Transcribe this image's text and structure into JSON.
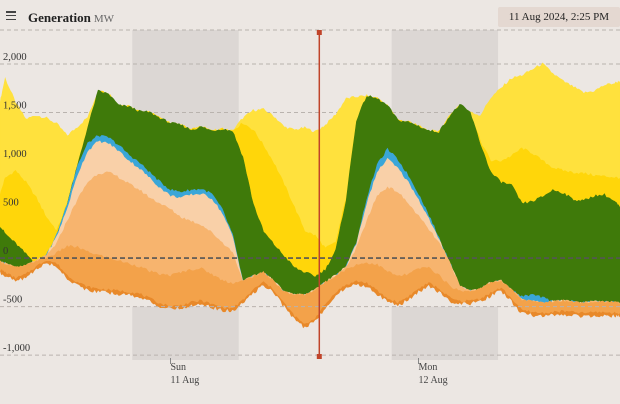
{
  "header": {
    "title": "Generation",
    "unit": "MW",
    "timestamp": "11 Aug 2024, 2:25 PM"
  },
  "chart_data": {
    "type": "area",
    "title": "Generation",
    "ylabel": "MW",
    "ylim": [
      -1050,
      2350
    ],
    "y_ticks": [
      {
        "value": 2000,
        "label": "2,000"
      },
      {
        "value": 1500,
        "label": "1,500"
      },
      {
        "value": 1000,
        "label": "1,000"
      },
      {
        "value": 500,
        "label": "500"
      },
      {
        "value": 0,
        "label": "0"
      },
      {
        "value": -500,
        "label": "-500"
      },
      {
        "value": -1000,
        "label": "-1,000"
      }
    ],
    "x_ticks": [
      {
        "hour": 24,
        "line1": "Sun",
        "line2": "11 Aug"
      },
      {
        "hour": 48,
        "line1": "Mon",
        "line2": "12 Aug"
      }
    ],
    "x_range_hours": [
      7.5,
      67.5
    ],
    "cursor_hour": 38.4,
    "night_bands": [
      [
        20.3,
        30.6
      ],
      [
        45.4,
        55.7
      ]
    ],
    "grid": true,
    "colors": {
      "negative_load": "#e8892a",
      "battery": "#f3a24a",
      "rooftop_solar": "#f7b46e",
      "utility_solar": "#f9d0a8",
      "hydro": "#3aa6d8",
      "wind": "#3f7a0a",
      "gas": "#ffd60a",
      "imports": "#ffe13d",
      "cursor": "#c0442a"
    },
    "x": [
      7.5,
      8,
      9,
      10,
      11,
      12,
      13,
      14,
      15,
      16,
      17,
      18,
      19,
      20,
      21,
      22,
      23,
      24,
      25,
      26,
      27,
      28,
      29,
      30,
      31,
      32,
      33,
      34,
      35,
      36,
      37,
      38,
      39,
      40,
      41,
      42,
      43,
      44,
      45,
      46,
      47,
      48,
      49,
      50,
      51,
      52,
      53,
      54,
      55,
      56,
      57,
      58,
      59,
      60,
      61,
      62,
      63,
      64,
      65,
      66,
      67,
      67.5
    ],
    "series": [
      {
        "key": "negative_load",
        "values": [
          -120,
          -150,
          -210,
          -170,
          -90,
          -20,
          -60,
          -180,
          -250,
          -300,
          -320,
          -330,
          -340,
          -350,
          -370,
          -420,
          -470,
          -500,
          -490,
          -460,
          -440,
          -480,
          -510,
          -520,
          -440,
          -330,
          -250,
          -330,
          -470,
          -600,
          -690,
          -620,
          -480,
          -350,
          -280,
          -240,
          -260,
          -340,
          -420,
          -460,
          -400,
          -320,
          -260,
          -320,
          -410,
          -450,
          -440,
          -420,
          -360,
          -310,
          -420,
          -540,
          -560,
          -570,
          -560,
          -550,
          -560,
          -570,
          -560,
          -560,
          -570,
          -570
        ]
      },
      {
        "key": "battery",
        "values": [
          -40,
          -60,
          -100,
          -80,
          -30,
          0,
          50,
          120,
          110,
          60,
          30,
          0,
          -30,
          -60,
          -90,
          -140,
          -170,
          -180,
          -150,
          -120,
          -110,
          -170,
          -230,
          -260,
          -240,
          -190,
          -150,
          -240,
          -350,
          -380,
          -380,
          -330,
          -250,
          -180,
          -120,
          -70,
          -50,
          -70,
          -140,
          -190,
          -170,
          -110,
          -100,
          -180,
          -290,
          -340,
          -340,
          -320,
          -250,
          -240,
          -330,
          -430,
          -450,
          -460,
          -450,
          -440,
          -450,
          -460,
          -450,
          -450,
          -460,
          -460
        ]
      },
      {
        "key": "rooftop_solar",
        "values": [
          -40,
          -60,
          -100,
          -80,
          -30,
          20,
          150,
          380,
          600,
          780,
          870,
          880,
          830,
          760,
          700,
          620,
          560,
          500,
          420,
          380,
          340,
          260,
          160,
          60,
          -240,
          -190,
          -150,
          -240,
          -350,
          -380,
          -380,
          -330,
          -250,
          -180,
          -100,
          100,
          380,
          640,
          730,
          680,
          560,
          430,
          290,
          150,
          -40,
          -290,
          -340,
          -320,
          -250,
          -240,
          -330,
          -430,
          -450,
          -460,
          -450,
          -440,
          -450,
          -460,
          -450,
          -450,
          -460,
          -460
        ]
      },
      {
        "key": "utility_solar",
        "values": [
          -40,
          -60,
          -100,
          -80,
          -30,
          30,
          220,
          500,
          850,
          1100,
          1200,
          1180,
          1100,
          1000,
          920,
          820,
          720,
          640,
          620,
          650,
          660,
          610,
          460,
          220,
          -240,
          -190,
          -150,
          -240,
          -350,
          -380,
          -380,
          -330,
          -250,
          -180,
          -90,
          150,
          560,
          880,
          1020,
          920,
          780,
          600,
          400,
          180,
          -40,
          -290,
          -340,
          -320,
          -250,
          -240,
          -330,
          -430,
          -450,
          -460,
          -450,
          -440,
          -450,
          -460,
          -450,
          -450,
          -460,
          -460
        ]
      },
      {
        "key": "hydro",
        "values": [
          -40,
          -60,
          -100,
          -80,
          -30,
          30,
          240,
          560,
          950,
          1180,
          1260,
          1240,
          1160,
          1060,
          980,
          880,
          780,
          700,
          680,
          700,
          710,
          660,
          500,
          240,
          -240,
          -190,
          -150,
          -240,
          -350,
          -380,
          -380,
          -330,
          -250,
          -180,
          -90,
          160,
          610,
          960,
          1120,
          1010,
          850,
          660,
          440,
          200,
          -40,
          -290,
          -340,
          -320,
          -250,
          -240,
          -330,
          -400,
          -380,
          -410,
          -450,
          -440,
          -450,
          -460,
          -450,
          -450,
          -460,
          -460
        ]
      },
      {
        "key": "wind",
        "values": [
          330,
          250,
          150,
          40,
          -60,
          -20,
          230,
          560,
          950,
          1350,
          1720,
          1690,
          1570,
          1560,
          1510,
          1500,
          1440,
          1390,
          1370,
          1320,
          1350,
          1310,
          1330,
          1310,
          1040,
          560,
          270,
          140,
          20,
          -100,
          -150,
          -190,
          -120,
          80,
          600,
          1420,
          1670,
          1640,
          1570,
          1420,
          1400,
          1360,
          1310,
          1300,
          1460,
          1580,
          1500,
          1170,
          880,
          780,
          750,
          560,
          580,
          630,
          700,
          670,
          600,
          590,
          640,
          650,
          580,
          520
        ]
      },
      {
        "key": "gas",
        "values": [
          650,
          820,
          900,
          780,
          620,
          420,
          280,
          560,
          950,
          1350,
          1720,
          1690,
          1570,
          1560,
          1510,
          1500,
          1440,
          1390,
          1370,
          1320,
          1350,
          1310,
          1330,
          1310,
          1390,
          1320,
          1160,
          980,
          760,
          520,
          280,
          230,
          100,
          160,
          620,
          1420,
          1670,
          1640,
          1570,
          1420,
          1400,
          1360,
          1310,
          1300,
          1460,
          1580,
          1500,
          1200,
          1000,
          1000,
          1050,
          1130,
          1080,
          1000,
          930,
          900,
          880,
          870,
          850,
          840,
          830,
          820
        ]
      },
      {
        "key": "imports",
        "values": [
          1600,
          1850,
          1600,
          1430,
          1470,
          1440,
          1380,
          1260,
          1350,
          1450,
          1720,
          1690,
          1570,
          1560,
          1510,
          1500,
          1440,
          1390,
          1370,
          1320,
          1350,
          1310,
          1330,
          1310,
          1440,
          1520,
          1530,
          1460,
          1350,
          1320,
          1340,
          1300,
          1370,
          1480,
          1640,
          1660,
          1670,
          1640,
          1570,
          1420,
          1400,
          1360,
          1310,
          1300,
          1460,
          1580,
          1500,
          1470,
          1650,
          1750,
          1850,
          1880,
          1940,
          2000,
          1900,
          1820,
          1760,
          1700,
          1720,
          1780,
          1800,
          1820
        ]
      }
    ]
  }
}
